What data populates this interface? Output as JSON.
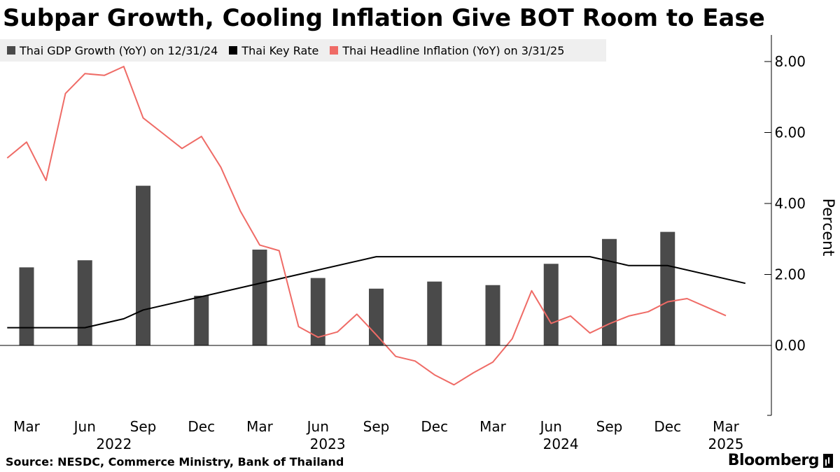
{
  "title": "Subpar Growth, Cooling Inflation Give BOT Room to Ease",
  "source": "Source: NESDC, Commerce Ministry, Bank of Thailand",
  "brand": "Bloomberg",
  "colors": {
    "gdp": "#4a4a4a",
    "rate": "#000000",
    "inflation": "#ef6b66",
    "axis": "#000000",
    "legend_bg": "#efefef"
  },
  "chart_data": {
    "type": "bar+line",
    "title": "Subpar Growth, Cooling Inflation Give BOT Room to Ease",
    "ylabel": "Percent",
    "ylim": [
      -2.0,
      8.8
    ],
    "y_ticks": [
      "8.00",
      "6.00",
      "4.00",
      "2.00",
      "0.00"
    ],
    "y_tick_values": [
      8,
      6,
      4,
      2,
      0
    ],
    "x_ticks": [
      {
        "label": "Mar",
        "month": 3
      },
      {
        "label": "Jun",
        "month": 6
      },
      {
        "label": "Sep",
        "month": 9
      },
      {
        "label": "Dec",
        "month": 12
      },
      {
        "label": "Mar",
        "month": 15
      },
      {
        "label": "Jun",
        "month": 18
      },
      {
        "label": "Sep",
        "month": 21
      },
      {
        "label": "Dec",
        "month": 24
      },
      {
        "label": "Mar",
        "month": 27
      },
      {
        "label": "Jun",
        "month": 30
      },
      {
        "label": "Sep",
        "month": 33
      },
      {
        "label": "Dec",
        "month": 36
      },
      {
        "label": "Mar",
        "month": 39
      }
    ],
    "year_labels": [
      {
        "label": "2022",
        "month": 7.5
      },
      {
        "label": "2023",
        "month": 18.5
      },
      {
        "label": "2024",
        "month": 30.5
      },
      {
        "label": "2025",
        "month": 39
      }
    ],
    "x_range_months": [
      2.0,
      40.0
    ],
    "series": [
      {
        "name": "Thai GDP Growth (YoY) on 12/31/24",
        "type": "bar",
        "color": "#4a4a4a",
        "months": [
          3,
          6,
          9,
          12,
          15,
          18,
          21,
          24,
          27,
          30,
          33,
          36
        ],
        "values": [
          2.2,
          2.4,
          4.5,
          1.4,
          2.7,
          1.9,
          1.6,
          1.8,
          1.7,
          2.3,
          3.0,
          3.2
        ]
      },
      {
        "name": "Thai Key Rate",
        "type": "step-line",
        "color": "#000000",
        "months": [
          2,
          6,
          8,
          9,
          21,
          32,
          34,
          36,
          40
        ],
        "values": [
          0.5,
          0.5,
          0.75,
          1.0,
          2.5,
          2.5,
          2.25,
          2.25,
          1.75
        ]
      },
      {
        "name": "Thai Headline Inflation (YoY) on 3/31/25",
        "type": "line",
        "color": "#ef6b66",
        "months": [
          2,
          3,
          4,
          5,
          6,
          7,
          8,
          9,
          10,
          11,
          12,
          13,
          14,
          15,
          16,
          17,
          18,
          19,
          20,
          21,
          22,
          23,
          24,
          25,
          26,
          27,
          28,
          29,
          30,
          31,
          32,
          33,
          34,
          35,
          36,
          37,
          38,
          39
        ],
        "values": [
          5.28,
          5.73,
          4.65,
          7.1,
          7.66,
          7.61,
          7.86,
          6.41,
          5.98,
          5.55,
          5.89,
          5.02,
          3.79,
          2.83,
          2.67,
          0.53,
          0.23,
          0.38,
          0.88,
          0.3,
          -0.31,
          -0.44,
          -0.83,
          -1.11,
          -0.77,
          -0.47,
          0.19,
          1.54,
          0.62,
          0.83,
          0.35,
          0.61,
          0.83,
          0.95,
          1.23,
          1.32,
          1.08,
          0.84
        ]
      }
    ]
  }
}
